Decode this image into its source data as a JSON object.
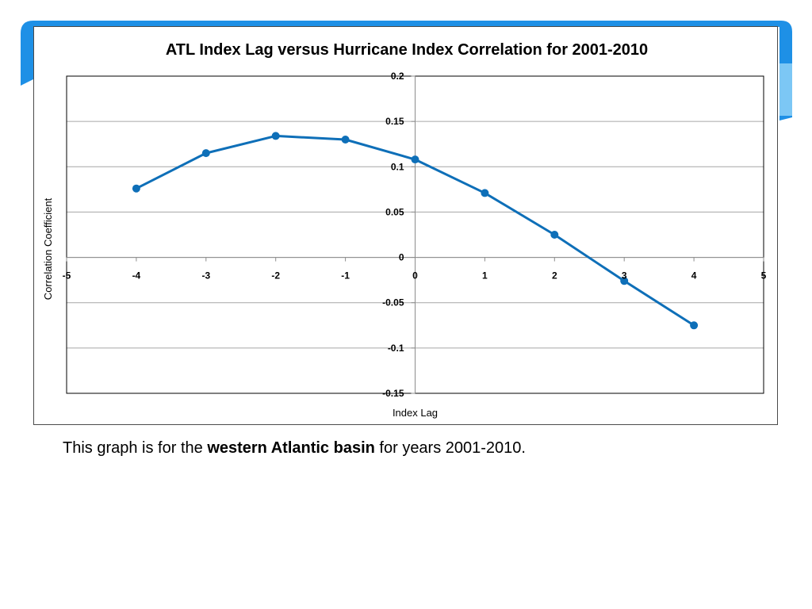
{
  "colors": {
    "series": "#0e6fb8",
    "grid": "#a6a6a6",
    "frame": "#000000",
    "accent": "#1e90e6"
  },
  "caption": {
    "prefix": "This graph is for the ",
    "bold": "western Atlantic basin",
    "suffix": " for years 2001-2010."
  },
  "chart_data": {
    "type": "line",
    "title": "ATL Index Lag versus  Hurricane Index Correlation for 2001-2010",
    "xlabel": "Index Lag",
    "ylabel": "Correlation Coefficient",
    "xlim": [
      -5,
      5
    ],
    "ylim": [
      -0.15,
      0.2
    ],
    "x_ticks": [
      "-5",
      "-4",
      "-3",
      "-2",
      "-1",
      "0",
      "1",
      "2",
      "3",
      "4",
      "5"
    ],
    "y_ticks": [
      "0.2",
      "0.15",
      "0.1",
      "0.05",
      "0",
      "-0.05",
      "-0.1",
      "-0.15"
    ],
    "grid": "horizontal",
    "legend": "none",
    "series": [
      {
        "x": [
          -4,
          -3,
          -2,
          -1,
          0,
          1,
          2,
          3,
          4
        ],
        "y": [
          0.076,
          0.115,
          0.134,
          0.13,
          0.108,
          0.071,
          0.025,
          -0.026,
          -0.075
        ],
        "marker": "circle"
      }
    ]
  }
}
